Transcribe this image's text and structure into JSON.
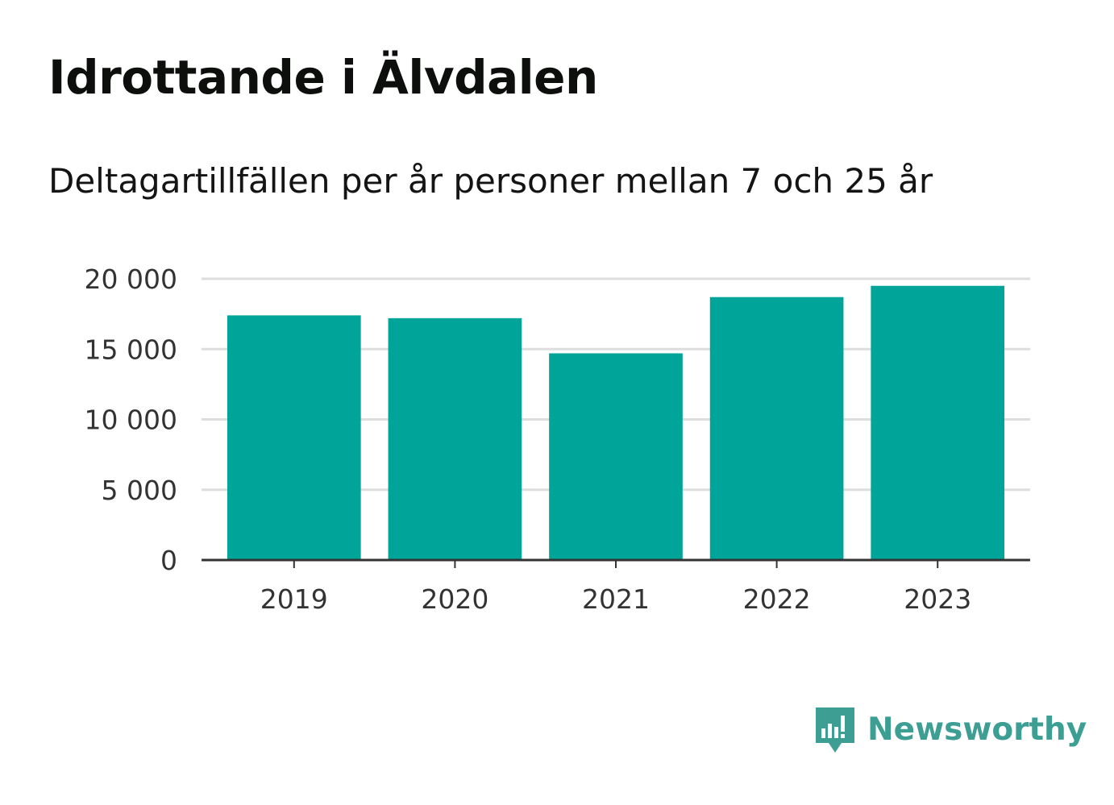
{
  "title": "Idrottande i Älvdalen",
  "subtitle": "Deltagartillfällen per år personer mellan 7 och 25 år",
  "brand": {
    "name": "Newsworthy",
    "icon": "newsworthy-logo-icon",
    "color": "#3d9e94"
  },
  "colors": {
    "bar": "#00a499",
    "grid": "#dddddd",
    "axis": "#333333"
  },
  "chart_data": {
    "type": "bar",
    "categories": [
      "2019",
      "2020",
      "2021",
      "2022",
      "2023"
    ],
    "values": [
      17400,
      17200,
      14700,
      18700,
      19500
    ],
    "ylim": [
      0,
      20000
    ],
    "yticks": [
      0,
      5000,
      10000,
      15000,
      20000
    ],
    "ytick_labels": [
      "0",
      "5 000",
      "10 000",
      "15 000",
      "20 000"
    ],
    "grid": true,
    "xlabel": "",
    "ylabel": ""
  }
}
